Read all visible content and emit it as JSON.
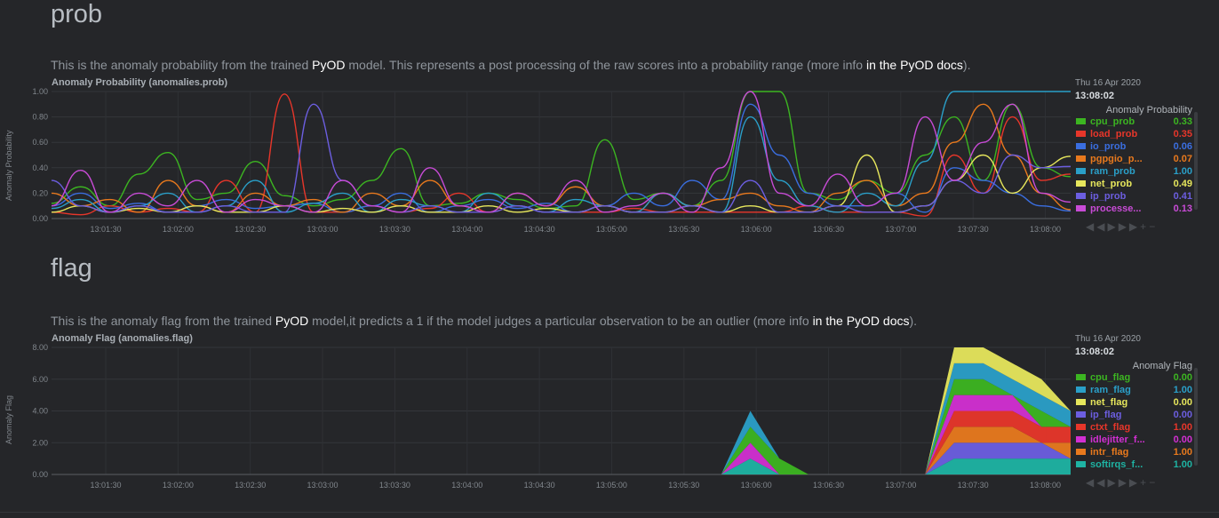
{
  "sections": [
    {
      "title": "prob",
      "desc_pre": "This is the anomaly probability from the trained ",
      "desc_hl": "PyOD",
      "desc_mid": " model. This represents a post processing of the raw scores into a probability range (more info ",
      "desc_link": "in the PyOD docs",
      "desc_post": ")."
    },
    {
      "title": "flag",
      "desc_pre": "This is the anomaly flag from the trained ",
      "desc_hl": "PyOD",
      "desc_mid": " model,it predicts a 1 if the model judges a particular observation to be an outlier (more info ",
      "desc_link": "in the PyOD docs",
      "desc_post": ")."
    }
  ],
  "charts": {
    "prob": {
      "title": "Anomaly Probability (anomalies.prob)",
      "ylabel": "Anomaly Probability",
      "legend_date": "Thu 16 Apr 2020",
      "legend_time": "13:08:02",
      "legend_heading": "Anomaly Probability",
      "legend": [
        {
          "name": "cpu_prob",
          "value": "0.33",
          "color": "#3cb521"
        },
        {
          "name": "load_prob",
          "value": "0.35",
          "color": "#e7362a"
        },
        {
          "name": "io_prob",
          "value": "0.06",
          "color": "#3a6ee0"
        },
        {
          "name": "pgpgio_p...",
          "value": "0.07",
          "color": "#e8791d"
        },
        {
          "name": "ram_prob",
          "value": "1.00",
          "color": "#2a9fc8"
        },
        {
          "name": "net_prob",
          "value": "0.49",
          "color": "#e6e65c"
        },
        {
          "name": "ip_prob",
          "value": "0.41",
          "color": "#6c5ee0"
        },
        {
          "name": "processe...",
          "value": "0.13",
          "color": "#c84bd6"
        }
      ]
    },
    "flag": {
      "title": "Anomaly Flag (anomalies.flag)",
      "ylabel": "Anomaly Flag",
      "legend_date": "Thu 16 Apr 2020",
      "legend_time": "13:08:02",
      "legend_heading": "Anomaly Flag",
      "legend": [
        {
          "name": "cpu_flag",
          "value": "0.00",
          "color": "#3cb521"
        },
        {
          "name": "ram_flag",
          "value": "1.00",
          "color": "#2a9fc8"
        },
        {
          "name": "net_flag",
          "value": "0.00",
          "color": "#e6e65c"
        },
        {
          "name": "ip_flag",
          "value": "0.00",
          "color": "#6c5ee0"
        },
        {
          "name": "ctxt_flag",
          "value": "1.00",
          "color": "#e7362a"
        },
        {
          "name": "idlejitter_f...",
          "value": "0.00",
          "color": "#d22fd2"
        },
        {
          "name": "intr_flag",
          "value": "1.00",
          "color": "#e8791d"
        },
        {
          "name": "softirqs_f...",
          "value": "1.00",
          "color": "#1eb3a3"
        }
      ]
    }
  },
  "chart_data": [
    {
      "type": "line",
      "title": "Anomaly Probability (anomalies.prob)",
      "ylabel": "Anomaly Probability",
      "ylim": [
        0,
        1
      ],
      "yticks": [
        "1.00",
        "0.80",
        "0.60",
        "0.40",
        "0.20",
        "0.00"
      ],
      "xticks": [
        "13:01:30",
        "13:02:00",
        "13:02:30",
        "13:03:00",
        "13:03:30",
        "13:04:00",
        "13:04:30",
        "13:05:00",
        "13:05:30",
        "13:06:00",
        "13:06:30",
        "13:07:00",
        "13:07:30",
        "13:08:00"
      ],
      "grid": true,
      "series": [
        {
          "name": "cpu_prob",
          "color": "#3cb521",
          "values": [
            0.12,
            0.25,
            0.1,
            0.35,
            0.52,
            0.15,
            0.2,
            0.45,
            0.18,
            0.1,
            0.15,
            0.3,
            0.55,
            0.1,
            0.12,
            0.2,
            0.15,
            0.08,
            0.1,
            0.62,
            0.15,
            0.2,
            0.1,
            0.3,
            1.0,
            1.0,
            0.2,
            0.15,
            0.3,
            0.2,
            0.5,
            0.8,
            0.3,
            0.9,
            0.4,
            0.33
          ]
        },
        {
          "name": "load_prob",
          "color": "#e7362a",
          "values": [
            0.05,
            0.03,
            0.1,
            0.05,
            0.08,
            0.05,
            0.3,
            0.05,
            0.98,
            0.05,
            0.05,
            0.1,
            0.05,
            0.08,
            0.2,
            0.05,
            0.1,
            0.05,
            0.05,
            0.05,
            0.08,
            0.05,
            0.05,
            0.05,
            0.05,
            0.05,
            0.1,
            0.05,
            0.05,
            0.05,
            0.02,
            0.5,
            0.2,
            0.8,
            0.3,
            0.35
          ]
        },
        {
          "name": "io_prob",
          "color": "#3a6ee0",
          "values": [
            0.1,
            0.2,
            0.08,
            0.12,
            0.05,
            0.1,
            0.15,
            0.08,
            0.1,
            0.12,
            0.05,
            0.1,
            0.2,
            0.05,
            0.1,
            0.15,
            0.08,
            0.12,
            0.05,
            0.1,
            0.2,
            0.1,
            0.3,
            0.15,
            0.9,
            0.5,
            0.2,
            0.1,
            0.1,
            0.2,
            0.05,
            0.4,
            0.3,
            0.2,
            0.1,
            0.06
          ]
        },
        {
          "name": "pgpgio_p...",
          "color": "#e8791d",
          "values": [
            0.2,
            0.1,
            0.15,
            0.05,
            0.3,
            0.1,
            0.05,
            0.2,
            0.1,
            0.15,
            0.05,
            0.2,
            0.1,
            0.3,
            0.1,
            0.05,
            0.2,
            0.1,
            0.25,
            0.1,
            0.05,
            0.2,
            0.1,
            0.15,
            0.2,
            0.1,
            0.05,
            0.2,
            0.3,
            0.1,
            0.2,
            0.6,
            0.9,
            0.5,
            0.2,
            0.07
          ]
        },
        {
          "name": "ram_prob",
          "color": "#2a9fc8",
          "values": [
            0.08,
            0.15,
            0.05,
            0.1,
            0.2,
            0.05,
            0.1,
            0.3,
            0.05,
            0.12,
            0.2,
            0.05,
            0.15,
            0.1,
            0.05,
            0.2,
            0.1,
            0.05,
            0.15,
            0.1,
            0.05,
            0.2,
            0.1,
            0.05,
            0.8,
            0.3,
            0.1,
            0.05,
            0.2,
            0.1,
            0.45,
            1.0,
            1.0,
            1.0,
            1.0,
            1.0
          ]
        },
        {
          "name": "net_prob",
          "color": "#e6e65c",
          "values": [
            0.05,
            0.1,
            0.05,
            0.08,
            0.05,
            0.1,
            0.05,
            0.05,
            0.1,
            0.05,
            0.08,
            0.05,
            0.1,
            0.05,
            0.05,
            0.1,
            0.05,
            0.08,
            0.05,
            0.1,
            0.05,
            0.05,
            0.1,
            0.05,
            0.1,
            0.05,
            0.05,
            0.1,
            0.5,
            0.05,
            0.1,
            0.3,
            0.5,
            0.2,
            0.4,
            0.49
          ]
        },
        {
          "name": "ip_prob",
          "color": "#6c5ee0",
          "values": [
            0.3,
            0.1,
            0.05,
            0.1,
            0.05,
            0.05,
            0.1,
            0.05,
            0.05,
            0.9,
            0.3,
            0.1,
            0.05,
            0.1,
            0.05,
            0.05,
            0.1,
            0.05,
            0.05,
            0.1,
            0.05,
            0.05,
            0.1,
            0.05,
            0.3,
            0.05,
            0.05,
            0.1,
            0.05,
            0.05,
            0.1,
            0.3,
            0.2,
            0.5,
            0.4,
            0.41
          ]
        },
        {
          "name": "processe...",
          "color": "#c84bd6",
          "values": [
            0.1,
            0.38,
            0.05,
            0.2,
            0.1,
            0.3,
            0.05,
            0.15,
            0.1,
            0.05,
            0.3,
            0.1,
            0.05,
            0.4,
            0.1,
            0.05,
            0.2,
            0.1,
            0.3,
            0.05,
            0.1,
            0.2,
            0.05,
            0.4,
            1.0,
            0.2,
            0.1,
            0.35,
            0.1,
            0.2,
            0.8,
            0.3,
            0.6,
            0.9,
            0.2,
            0.13
          ]
        }
      ]
    },
    {
      "type": "area",
      "title": "Anomaly Flag (anomalies.flag)",
      "ylabel": "Anomaly Flag",
      "ylim": [
        0,
        8
      ],
      "yticks": [
        "8.00",
        "6.00",
        "4.00",
        "2.00",
        "0.00"
      ],
      "xticks": [
        "13:01:30",
        "13:02:00",
        "13:02:30",
        "13:03:00",
        "13:03:30",
        "13:04:00",
        "13:04:30",
        "13:05:00",
        "13:05:30",
        "13:06:00",
        "13:06:30",
        "13:07:00",
        "13:07:30",
        "13:08:00"
      ],
      "stacked": true,
      "grid": true,
      "series": [
        {
          "name": "softirqs_f...",
          "color": "#1eb3a3",
          "values": [
            0,
            0,
            0,
            0,
            0,
            0,
            0,
            0,
            0,
            0,
            0,
            0,
            0,
            0,
            0,
            0,
            0,
            0,
            0,
            0,
            0,
            0,
            0,
            0,
            1,
            0,
            0,
            0,
            0,
            0,
            0,
            1,
            1,
            1,
            1,
            1
          ]
        },
        {
          "name": "ip_flag",
          "color": "#6c5ee0",
          "values": [
            0,
            0,
            0,
            0,
            0,
            0,
            0,
            0,
            0,
            0,
            0,
            0,
            0,
            0,
            0,
            0,
            0,
            0,
            0,
            0,
            0,
            0,
            0,
            0,
            0,
            0,
            0,
            0,
            0,
            0,
            0,
            1,
            1,
            1,
            1,
            0
          ]
        },
        {
          "name": "intr_flag",
          "color": "#e8791d",
          "values": [
            0,
            0,
            0,
            0,
            0,
            0,
            0,
            0,
            0,
            0,
            0,
            0,
            0,
            0,
            0,
            0,
            0,
            0,
            0,
            0,
            0,
            0,
            0,
            0,
            0,
            0,
            0,
            0,
            0,
            0,
            0,
            1,
            1,
            1,
            0,
            1
          ]
        },
        {
          "name": "ctxt_flag",
          "color": "#e7362a",
          "values": [
            0,
            0,
            0,
            0,
            0,
            0,
            0,
            0,
            0,
            0,
            0,
            0,
            0,
            0,
            0,
            0,
            0,
            0,
            0,
            0,
            0,
            0,
            0,
            0,
            0,
            0,
            0,
            0,
            0,
            0,
            0,
            1,
            1,
            1,
            1,
            1
          ]
        },
        {
          "name": "idlejitter_f...",
          "color": "#d22fd2",
          "values": [
            0,
            0,
            0,
            0,
            0,
            0,
            0,
            0,
            0,
            0,
            0,
            0,
            0,
            0,
            0,
            0,
            0,
            0,
            0,
            0,
            0,
            0,
            0,
            0,
            1,
            0,
            0,
            0,
            0,
            0,
            0,
            1,
            1,
            1,
            0,
            0
          ]
        },
        {
          "name": "cpu_flag",
          "color": "#3cb521",
          "values": [
            0,
            0,
            0,
            0,
            0,
            0,
            0,
            0,
            0,
            0,
            0,
            0,
            0,
            0,
            0,
            0,
            0,
            0,
            0,
            0,
            0,
            0,
            0,
            0,
            1,
            1,
            0,
            0,
            0,
            0,
            0,
            1,
            1,
            0,
            1,
            0
          ]
        },
        {
          "name": "ram_flag",
          "color": "#2a9fc8",
          "values": [
            0,
            0,
            0,
            0,
            0,
            0,
            0,
            0,
            0,
            0,
            0,
            0,
            0,
            0,
            0,
            0,
            0,
            0,
            0,
            0,
            0,
            0,
            0,
            0,
            1,
            0,
            0,
            0,
            0,
            0,
            0,
            1,
            1,
            1,
            1,
            1
          ]
        },
        {
          "name": "net_flag",
          "color": "#e6e65c",
          "values": [
            0,
            0,
            0,
            0,
            0,
            0,
            0,
            0,
            0,
            0,
            0,
            0,
            0,
            0,
            0,
            0,
            0,
            0,
            0,
            0,
            0,
            0,
            0,
            0,
            0,
            0,
            0,
            0,
            0,
            0,
            0,
            1,
            1,
            1,
            1,
            0
          ]
        }
      ]
    }
  ]
}
